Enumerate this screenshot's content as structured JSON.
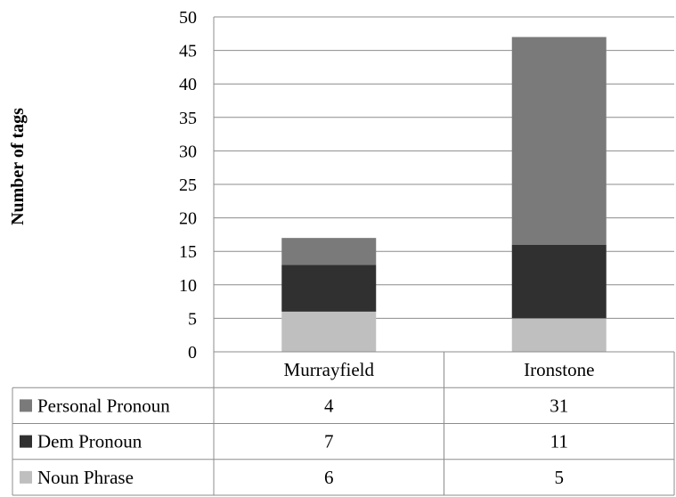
{
  "chart_data": {
    "type": "bar",
    "stacked": true,
    "title": "",
    "xlabel": "",
    "ylabel": "Number of tags",
    "ylim": [
      0,
      50
    ],
    "yticks": [
      0,
      5,
      10,
      15,
      20,
      25,
      30,
      35,
      40,
      45,
      50
    ],
    "grid": true,
    "legend": "data-table-left",
    "categories": [
      "Murrayfield",
      "Ironstone"
    ],
    "series": [
      {
        "name": "Noun Phrase",
        "values": [
          6,
          5
        ],
        "color": "#bfbfbf"
      },
      {
        "name": "Dem Pronoun",
        "values": [
          7,
          11
        ],
        "color": "#303030"
      },
      {
        "name": "Personal Pronoun",
        "values": [
          4,
          31
        ],
        "color": "#7a7a7a"
      }
    ],
    "table_row_order": [
      "Personal Pronoun",
      "Dem Pronoun",
      "Noun Phrase"
    ]
  }
}
